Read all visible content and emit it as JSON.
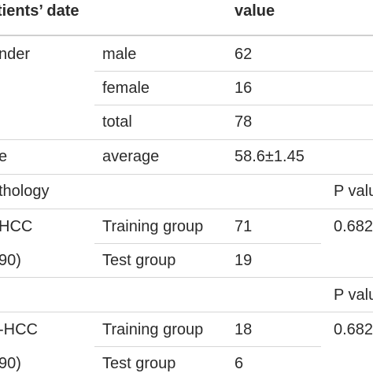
{
  "header": {
    "col1": "tients’ date",
    "col3": "value"
  },
  "rows": [
    {
      "c1": "nder",
      "c2": "male",
      "c3": "62",
      "c4": ""
    },
    {
      "c1": "",
      "c2": "female",
      "c3": "16",
      "c4": ""
    },
    {
      "c1": "",
      "c2": "total",
      "c3": "78",
      "c4": ""
    },
    {
      "c1": "e",
      "c2": "average",
      "c3": "58.6±1.45",
      "c4": ""
    },
    {
      "c1": "thology",
      "c2": "",
      "c3": "",
      "c4": "P valu"
    },
    {
      "c1": "HCC",
      "c2": "Training group",
      "c3": "71",
      "c4": "0.682"
    },
    {
      "c1": "90)",
      "c2": "Test group",
      "c3": "19",
      "c4": ""
    },
    {
      "c1": "",
      "c2": "",
      "c3": "",
      "c4": "P valu"
    },
    {
      "c1": "-HCC",
      "c2": "Training group",
      "c3": "18",
      "c4": "0.682"
    },
    {
      "c1": "90)",
      "c2": "Test group",
      "c3": "6",
      "c4": ""
    }
  ]
}
